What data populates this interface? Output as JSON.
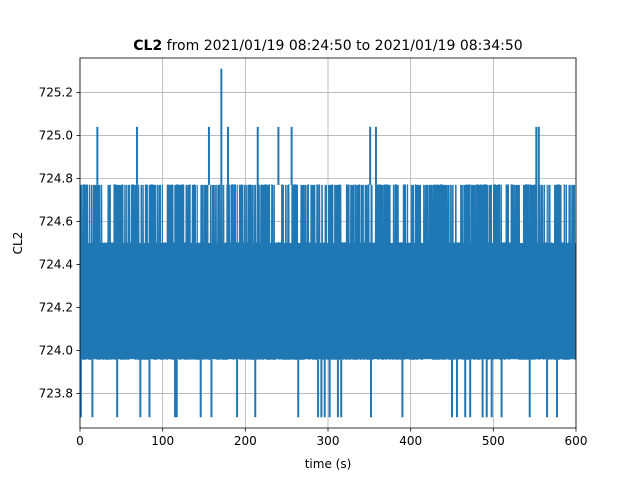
{
  "chart_data": {
    "type": "line",
    "title_bold": "CL2",
    "title_rest": " from 2021/01/19 08:24:50 to 2021/01/19 08:34:50",
    "xlabel": "time (s)",
    "ylabel": "CL2",
    "xlim": [
      0,
      600
    ],
    "ylim": [
      723.64,
      725.36
    ],
    "xticks": [
      0,
      100,
      200,
      300,
      400,
      500,
      600
    ],
    "yticks": [
      723.8,
      724.0,
      724.2,
      724.4,
      724.6,
      724.8,
      725.0,
      725.2
    ],
    "ytick_labels": [
      "723.8",
      "724.0",
      "724.2",
      "724.4",
      "724.6",
      "724.8",
      "725.0",
      "725.2"
    ],
    "grid": true,
    "color": "#1f77b4",
    "levels": [
      723.69,
      723.96,
      724.23,
      724.5,
      724.77,
      725.04,
      725.31
    ],
    "band": {
      "low": 723.96,
      "high": 724.5
    },
    "series": [
      {
        "x_start": 0,
        "x_end": 600,
        "typical_range": [
          723.96,
          724.77
        ],
        "spikes_high": [
          {
            "x": 21,
            "y": 725.04
          },
          {
            "x": 69,
            "y": 725.04
          },
          {
            "x": 156,
            "y": 725.04
          },
          {
            "x": 171,
            "y": 725.31
          },
          {
            "x": 179,
            "y": 725.04
          },
          {
            "x": 215,
            "y": 725.04
          },
          {
            "x": 240,
            "y": 725.04
          },
          {
            "x": 256,
            "y": 725.04
          },
          {
            "x": 351,
            "y": 725.04
          },
          {
            "x": 358,
            "y": 725.04
          },
          {
            "x": 552,
            "y": 725.04
          },
          {
            "x": 555,
            "y": 725.04
          }
        ],
        "spikes_low": [
          {
            "x": 1,
            "y": 723.69
          },
          {
            "x": 15,
            "y": 723.69
          },
          {
            "x": 45,
            "y": 723.69
          },
          {
            "x": 73,
            "y": 723.69
          },
          {
            "x": 84,
            "y": 723.69
          },
          {
            "x": 115,
            "y": 723.69
          },
          {
            "x": 117,
            "y": 723.69
          },
          {
            "x": 146,
            "y": 723.69
          },
          {
            "x": 159,
            "y": 723.69
          },
          {
            "x": 190,
            "y": 723.69
          },
          {
            "x": 212,
            "y": 723.69
          },
          {
            "x": 264,
            "y": 723.69
          },
          {
            "x": 288,
            "y": 723.69
          },
          {
            "x": 292,
            "y": 723.69
          },
          {
            "x": 296,
            "y": 723.69
          },
          {
            "x": 302,
            "y": 723.69
          },
          {
            "x": 312,
            "y": 723.69
          },
          {
            "x": 316,
            "y": 723.69
          },
          {
            "x": 352,
            "y": 723.69
          },
          {
            "x": 390,
            "y": 723.69
          },
          {
            "x": 450,
            "y": 723.69
          },
          {
            "x": 456,
            "y": 723.69
          },
          {
            "x": 466,
            "y": 723.69
          },
          {
            "x": 472,
            "y": 723.69
          },
          {
            "x": 487,
            "y": 723.69
          },
          {
            "x": 492,
            "y": 723.69
          },
          {
            "x": 498,
            "y": 723.69
          },
          {
            "x": 510,
            "y": 723.69
          },
          {
            "x": 544,
            "y": 723.69
          },
          {
            "x": 565,
            "y": 723.69
          },
          {
            "x": 577,
            "y": 723.69
          }
        ],
        "gaps_top": [
          [
            28,
            33
          ],
          [
            100,
            105
          ],
          [
            237,
            242
          ],
          [
            316,
            322
          ],
          [
            385,
            391
          ],
          [
            455,
            460
          ],
          [
            510,
            515
          ]
        ],
        "gaps_bottom": [
          [
            60,
            66
          ],
          [
            158,
            163
          ],
          [
            355,
            360
          ],
          [
            415,
            425
          ],
          [
            520,
            525
          ]
        ]
      }
    ]
  }
}
